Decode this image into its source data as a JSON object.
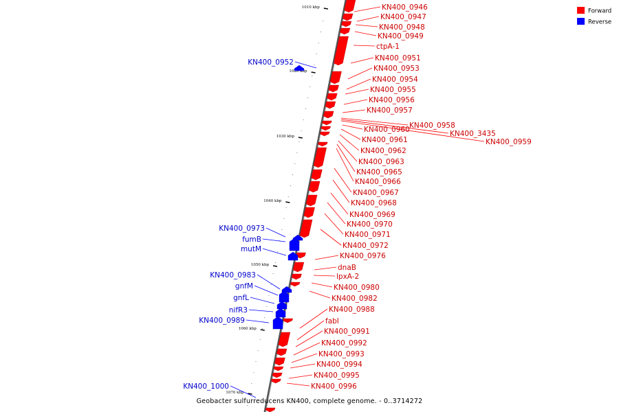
{
  "caption": "Geobacter sulfurreducens KN400, complete genome. - 0..3714272",
  "colors": {
    "forward": "#ff0000",
    "reverse": "#0000ff",
    "axis": "#555555"
  },
  "legend": [
    {
      "label": "Forward",
      "strand": "forward"
    },
    {
      "label": "Reverse",
      "strand": "reverse"
    }
  ],
  "ticks": [
    "1010 kbp",
    "1020 kbp",
    "1030 kbp",
    "1040 kbp",
    "1050 kbp",
    "1060 kbp",
    "1070 kbp"
  ],
  "forward_labels": [
    "KN400_0946",
    "KN400_0947",
    "KN400_0948",
    "KN400_0949",
    "ctpA-1",
    "KN400_0951",
    "KN400_0953",
    "KN400_0954",
    "KN400_0955",
    "KN400_0956",
    "KN400_0957",
    "KN400_0958",
    "KN400_3435",
    "KN400_0959",
    "KN400_0960",
    "KN400_0961",
    "KN400_0962",
    "KN400_0963",
    "KN400_0965",
    "KN400_0966",
    "KN400_0967",
    "KN400_0968",
    "KN400_0969",
    "KN400_0970",
    "KN400_0971",
    "KN400_0972",
    "KN400_0976",
    "dnaB",
    "lpxA-2",
    "KN400_0980",
    "KN400_0982",
    "KN400_0988",
    "fabI",
    "KN400_0991",
    "KN400_0992",
    "KN400_0993",
    "KN400_0994",
    "KN400_0995",
    "KN400_0996"
  ],
  "reverse_labels": [
    "KN400_0952",
    "KN400_0973",
    "fumB",
    "mutM",
    "KN400_0983",
    "gnfM",
    "gnfL",
    "nifR3",
    "KN400_0989",
    "KN400_1000"
  ]
}
